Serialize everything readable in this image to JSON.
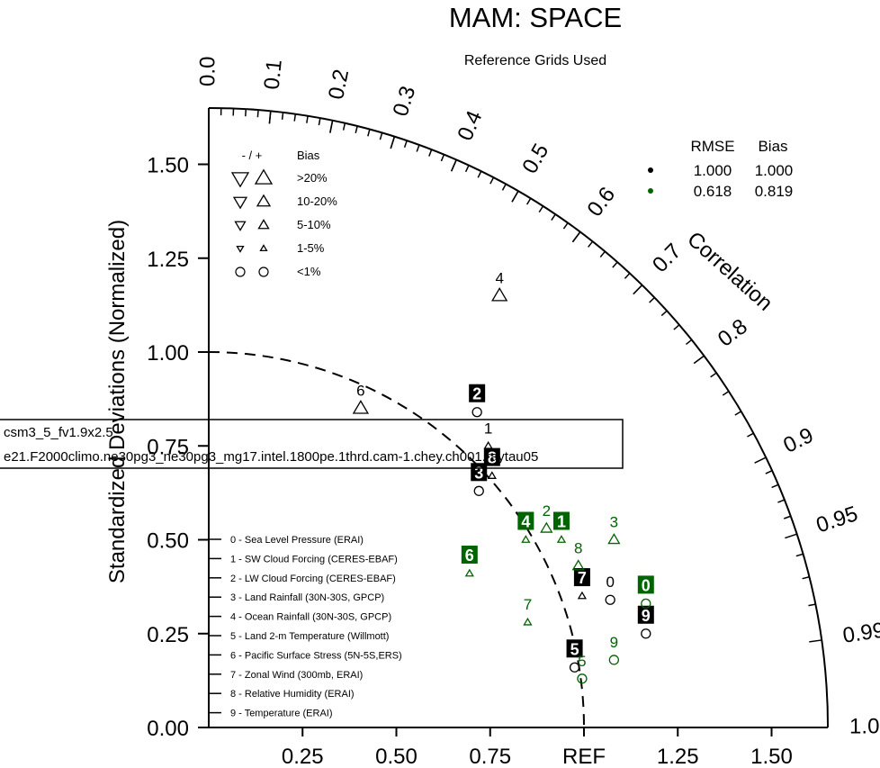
{
  "chart_data": {
    "type": "scatter",
    "subtype": "taylor-diagram",
    "title": "MAM: SPACE",
    "subtitle": "Reference Grids Used",
    "ylabel": "Standardized Deviations (Normalized)",
    "corr_label": "Correlation",
    "ref_label": "REF",
    "ylim": [
      0,
      1.65
    ],
    "y_ticks": [
      "0.00",
      "0.25",
      "0.50",
      "0.75",
      "1.00",
      "1.25",
      "1.50"
    ],
    "x_ticks": [
      "0.25",
      "0.50",
      "0.75",
      "1.25",
      "1.50"
    ],
    "corr_ticks": [
      "0.0",
      "0.1",
      "0.2",
      "0.3",
      "0.4",
      "0.5",
      "0.6",
      "0.7",
      "0.8",
      "0.9",
      "0.95",
      "0.99",
      "1.0"
    ],
    "bias_legend": {
      "header_sign": "- / +",
      "header_bias": "Bias",
      "rows": [
        ">20%",
        "10-20%",
        "5-10%",
        "1-5%",
        "<1%"
      ]
    },
    "stats_legend": {
      "header_rmse": "RMSE",
      "header_bias": "Bias",
      "rows": [
        {
          "color": "#000000",
          "rmse": "1.000",
          "bias": "1.000"
        },
        {
          "color": "#006400",
          "rmse": "0.618",
          "bias": "0.819"
        }
      ]
    },
    "case_names": [
      "csm3_5_fv1.9x2.5",
      "e21.F2000climo.ne30pg3_ne30pg3_mg17.intel.1800pe.1thrd.cam-1.chey.ch001.raytau05"
    ],
    "variables": [
      "0 - Sea Level Pressure (ERAI)",
      "1 - SW Cloud Forcing (CERES-EBAF)",
      "2 - LW Cloud Forcing (CERES-EBAF)",
      "3 - Land Rainfall (30N-30S, GPCP)",
      "4 - Ocean Rainfall (30N-30S, GPCP)",
      "5 - Land 2-m Temperature (Willmott)",
      "6 - Pacific Surface Stress (5N-5S,ERS)",
      "7 - Zonal Wind (300mb, ERAI)",
      "8 - Relative Humidity (ERAI)",
      "9 - Temperature (ERAI)"
    ],
    "series": [
      {
        "color": "#000000",
        "points": [
          {
            "label": "0",
            "x": 1.07,
            "y": 0.34,
            "marker": "circle",
            "boxed": false
          },
          {
            "label": "1",
            "x": 0.745,
            "y": 0.75,
            "marker": "tri-up-sm",
            "boxed": false
          },
          {
            "label": "2",
            "x": 0.715,
            "y": 0.84,
            "marker": "circle",
            "boxed": true
          },
          {
            "label": "3",
            "x": 0.72,
            "y": 0.63,
            "marker": "circle",
            "boxed": true
          },
          {
            "label": "4",
            "x": 0.775,
            "y": 1.15,
            "marker": "tri-up-lg",
            "boxed": false
          },
          {
            "label": "5",
            "x": 0.975,
            "y": 0.16,
            "marker": "circle",
            "boxed": true
          },
          {
            "label": "6",
            "x": 0.405,
            "y": 0.85,
            "marker": "tri-up-lg",
            "boxed": false
          },
          {
            "label": "7",
            "x": 0.995,
            "y": 0.35,
            "marker": "tri-up-sm",
            "boxed": true
          },
          {
            "label": "8",
            "x": 0.755,
            "y": 0.67,
            "marker": "tri-up-sm",
            "boxed": true
          },
          {
            "label": "9",
            "x": 1.165,
            "y": 0.25,
            "marker": "circle",
            "boxed": true
          }
        ]
      },
      {
        "color": "#006400",
        "points": [
          {
            "label": "0",
            "x": 1.165,
            "y": 0.33,
            "marker": "circle",
            "boxed": true
          },
          {
            "label": "1",
            "x": 0.94,
            "y": 0.5,
            "marker": "tri-up-sm",
            "boxed": true
          },
          {
            "label": "2",
            "x": 0.9,
            "y": 0.53,
            "marker": "tri-up-md",
            "boxed": false
          },
          {
            "label": "3",
            "x": 1.08,
            "y": 0.5,
            "marker": "tri-up-md",
            "boxed": false
          },
          {
            "label": "4",
            "x": 0.845,
            "y": 0.5,
            "marker": "tri-up-sm",
            "boxed": true
          },
          {
            "label": "5",
            "x": 0.995,
            "y": 0.13,
            "marker": "circle",
            "boxed": false
          },
          {
            "label": "6",
            "x": 0.695,
            "y": 0.41,
            "marker": "tri-up-sm",
            "boxed": true
          },
          {
            "label": "7",
            "x": 0.85,
            "y": 0.28,
            "marker": "tri-up-sm",
            "boxed": false
          },
          {
            "label": "8",
            "x": 0.985,
            "y": 0.43,
            "marker": "tri-up-md",
            "boxed": false
          },
          {
            "label": "9",
            "x": 1.08,
            "y": 0.18,
            "marker": "circle",
            "boxed": false
          }
        ]
      }
    ]
  }
}
